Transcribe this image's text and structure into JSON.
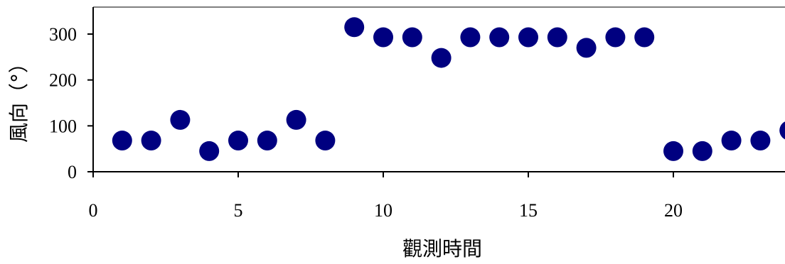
{
  "chart_data": {
    "type": "scatter",
    "xlabel": "觀測時間",
    "ylabel": "風向（°）",
    "xlim": [
      0,
      24
    ],
    "ylim": [
      0,
      300
    ],
    "x_ticks": [
      "0",
      "5",
      "10",
      "15",
      "20"
    ],
    "y_ticks": [
      "0",
      "100",
      "200",
      "300"
    ],
    "marker_color": "#000080",
    "grid": false,
    "series": [
      {
        "x": [
          1,
          2,
          3,
          4,
          5,
          6,
          7,
          8,
          9,
          10,
          11,
          12,
          13,
          14,
          15,
          16,
          17,
          18,
          19,
          20,
          21,
          22,
          23,
          24
        ],
        "values": [
          68,
          68,
          113,
          45,
          68,
          68,
          113,
          68,
          315,
          293,
          293,
          248,
          293,
          293,
          293,
          293,
          270,
          293,
          293,
          45,
          45,
          68,
          68,
          90
        ]
      }
    ]
  }
}
